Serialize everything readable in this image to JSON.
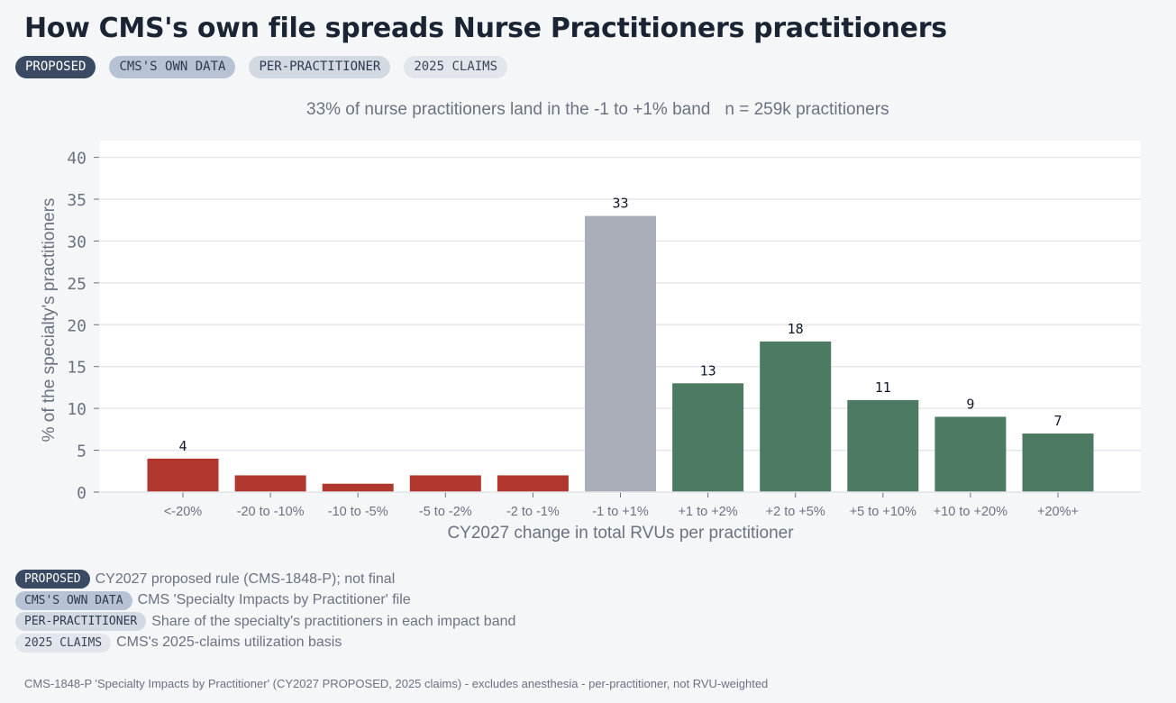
{
  "header": {
    "title": "How CMS's own file spreads Nurse Practitioners practitioners",
    "pills": [
      {
        "label": "PROPOSED"
      },
      {
        "label": "CMS'S OWN DATA"
      },
      {
        "label": "PER-PRACTITIONER"
      },
      {
        "label": "2025 CLAIMS"
      }
    ]
  },
  "subtitle": {
    "main": "33% of nurse practitioners land in the -1 to +1% band",
    "n": "n = 259k practitioners"
  },
  "legend": [
    {
      "pill": "PROPOSED",
      "text": "CY2027 proposed rule (CMS-1848-P); not final"
    },
    {
      "pill": "CMS'S OWN DATA",
      "text": "CMS 'Specialty Impacts by Practitioner' file"
    },
    {
      "pill": "PER-PRACTITIONER",
      "text": "Share of the specialty's practitioners in each impact band"
    },
    {
      "pill": "2025 CLAIMS",
      "text": "CMS's 2025-claims utilization basis"
    }
  ],
  "footnote": "CMS-1848-P 'Specialty Impacts by Practitioner' (CY2027 PROPOSED, 2025 claims) - excludes anesthesia - per-practitioner, not RVU-weighted",
  "colors": {
    "negative": "#b1362d",
    "neutral": "#a9aeb8",
    "positive": "#4d7a62",
    "plot_bg": "#ffffff",
    "grid": "#e5e7eb"
  },
  "chart_data": {
    "type": "bar",
    "categories": [
      "<-20%",
      "-20 to -10%",
      "-10 to -5%",
      "-5 to -2%",
      "-2 to -1%",
      "-1 to +1%",
      "+1 to +2%",
      "+2 to +5%",
      "+5 to +10%",
      "+10 to +20%",
      "+20%+"
    ],
    "values": [
      4,
      2,
      1,
      2,
      2,
      33,
      13,
      18,
      11,
      9,
      7
    ],
    "data_labels": [
      "4",
      "",
      "",
      "",
      "",
      "33",
      "13",
      "18",
      "11",
      "9",
      "7"
    ],
    "bar_groups": [
      "negative",
      "negative",
      "negative",
      "negative",
      "negative",
      "neutral",
      "positive",
      "positive",
      "positive",
      "positive",
      "positive"
    ],
    "xlabel": "CY2027 change in total RVUs per practitioner",
    "ylabel": "% of the specialty's practitioners",
    "ylim": [
      0,
      42
    ],
    "yticks": [
      0,
      5,
      10,
      15,
      20,
      25,
      30,
      35,
      40
    ],
    "grid": true
  }
}
